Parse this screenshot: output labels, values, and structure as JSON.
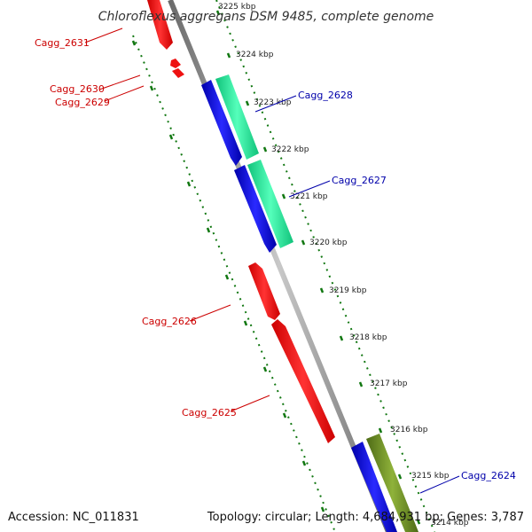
{
  "title": "Chloroflexus aggregans DSM 9485, complete genome",
  "footer": {
    "accession": "Accession: NC_011831",
    "topology": "Topology: circular; Length: 4,684,931 bp; Genes: 3,787"
  },
  "ticks": [
    {
      "label": "3225 kbp"
    },
    {
      "label": "3224 kbp"
    },
    {
      "label": "3223 kbp"
    },
    {
      "label": "3222 kbp"
    },
    {
      "label": "3221 kbp"
    },
    {
      "label": "3220 kbp"
    },
    {
      "label": "3219 kbp"
    },
    {
      "label": "3218 kbp"
    },
    {
      "label": "3217 kbp"
    },
    {
      "label": "3216 kbp"
    },
    {
      "label": "3215 kbp"
    },
    {
      "label": "3214 kbp"
    }
  ],
  "genes": [
    {
      "label": "Cagg_2631",
      "strand": "reverse",
      "color": "#cc0000"
    },
    {
      "label": "Cagg_2630",
      "strand": "reverse",
      "color": "#cc0000"
    },
    {
      "label": "Cagg_2629",
      "strand": "reverse",
      "color": "#cc0000"
    },
    {
      "label": "Cagg_2628",
      "strand": "forward",
      "color": "#0000aa"
    },
    {
      "label": "Cagg_2627",
      "strand": "forward",
      "color": "#0000aa"
    },
    {
      "label": "Cagg_2626",
      "strand": "reverse",
      "color": "#cc0000"
    },
    {
      "label": "Cagg_2625",
      "strand": "reverse",
      "color": "#cc0000"
    },
    {
      "label": "Cagg_2624",
      "strand": "forward",
      "color": "#0000aa"
    }
  ],
  "colors": {
    "reverse_cds": "#ff0000",
    "forward_cds": "#0000ff",
    "cog_teal": "#22ee99",
    "cog_olive": "#6b8e23",
    "backbone": "#888888",
    "tick": "#117711"
  }
}
